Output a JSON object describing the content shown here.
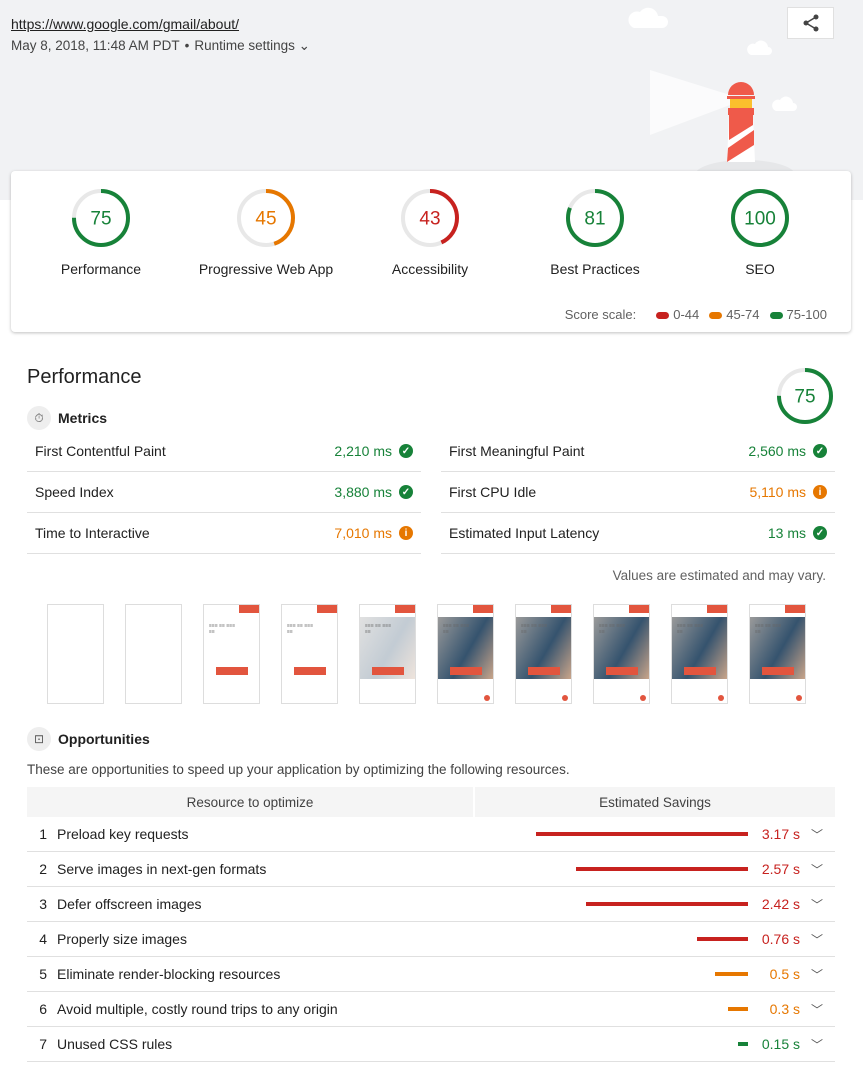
{
  "header": {
    "url": "https://www.google.com/gmail/about/",
    "date": "May 8, 2018, 11:48 AM PDT",
    "separator": "•",
    "runtime_settings": "Runtime settings",
    "share_icon": "share-icon"
  },
  "colors": {
    "pass": "#178239",
    "average": "#e67700",
    "fail": "#c7221f",
    "track": "#e8e8e8"
  },
  "categories": [
    {
      "label": "Performance",
      "score": 75
    },
    {
      "label": "Progressive Web App",
      "score": 45
    },
    {
      "label": "Accessibility",
      "score": 43
    },
    {
      "label": "Best Practices",
      "score": 81
    },
    {
      "label": "SEO",
      "score": 100
    }
  ],
  "score_scale": {
    "label": "Score scale:",
    "ranges": [
      {
        "label": "0-44",
        "level": "fail"
      },
      {
        "label": "45-74",
        "level": "average"
      },
      {
        "label": "75-100",
        "level": "pass"
      }
    ]
  },
  "performance": {
    "title": "Performance",
    "score": 75,
    "metrics_title": "Metrics",
    "metrics": [
      {
        "label": "First Contentful Paint",
        "value": "2,210 ms",
        "status": "pass"
      },
      {
        "label": "First Meaningful Paint",
        "value": "2,560 ms",
        "status": "pass"
      },
      {
        "label": "Speed Index",
        "value": "3,880 ms",
        "status": "pass"
      },
      {
        "label": "First CPU Idle",
        "value": "5,110 ms",
        "status": "average"
      },
      {
        "label": "Time to Interactive",
        "value": "7,010 ms",
        "status": "average"
      },
      {
        "label": "Estimated Input Latency",
        "value": "13 ms",
        "status": "pass"
      }
    ],
    "note": "Values are estimated and may vary.",
    "filmstrip": [
      "blank",
      "blank",
      "text",
      "text",
      "faded",
      "image",
      "image",
      "image",
      "image",
      "image"
    ],
    "opportunities_title": "Opportunities",
    "opportunities_desc": "These are opportunities to speed up your application by optimizing the following resources.",
    "columns": [
      "Resource to optimize",
      "Estimated Savings"
    ],
    "opportunities": [
      {
        "num": "1",
        "label": "Preload key requests",
        "savings": "3.17 s",
        "seconds": 3.17,
        "status": "fail"
      },
      {
        "num": "2",
        "label": "Serve images in next-gen formats",
        "savings": "2.57 s",
        "seconds": 2.57,
        "status": "fail"
      },
      {
        "num": "3",
        "label": "Defer offscreen images",
        "savings": "2.42 s",
        "seconds": 2.42,
        "status": "fail"
      },
      {
        "num": "4",
        "label": "Properly size images",
        "savings": "0.76 s",
        "seconds": 0.76,
        "status": "fail"
      },
      {
        "num": "5",
        "label": "Eliminate render-blocking resources",
        "savings": "0.5 s",
        "seconds": 0.5,
        "status": "average"
      },
      {
        "num": "6",
        "label": "Avoid multiple, costly round trips to any origin",
        "savings": "0.3 s",
        "seconds": 0.3,
        "status": "average"
      },
      {
        "num": "7",
        "label": "Unused CSS rules",
        "savings": "0.15 s",
        "seconds": 0.15,
        "status": "pass"
      }
    ]
  }
}
